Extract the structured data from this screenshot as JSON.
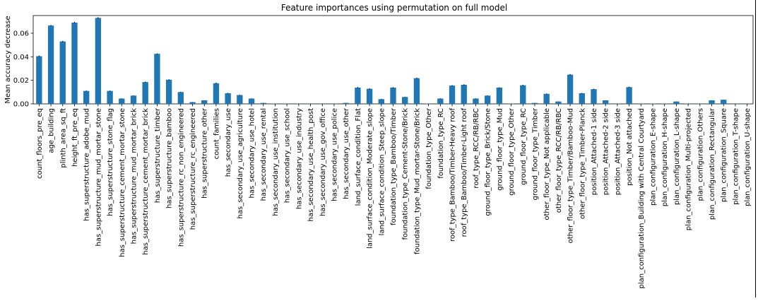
{
  "chart_data": {
    "type": "bar",
    "title": "Feature importances using permutation on full model",
    "xlabel": "",
    "ylabel": "Mean accuracy decrease",
    "ylim": [
      0,
      0.075
    ],
    "yticks": [
      0.0,
      0.02,
      0.04,
      0.06
    ],
    "ytick_labels": [
      "0.00",
      "0.02",
      "0.04",
      "0.06"
    ],
    "grid": false,
    "legend": "none",
    "bar_color": "#1f77b4",
    "categories": [
      "count_floors_pre_eq",
      "age_building",
      "plinth_area_sq_ft",
      "height_ft_pre_eq",
      "has_superstructure_adobe_mud",
      "has_superstructure_mud_mortar_stone",
      "has_superstructure_stone_flag",
      "has_superstructure_cement_mortar_stone",
      "has_superstructure_mud_mortar_brick",
      "has_superstructure_cement_mortar_brick",
      "has_superstructure_timber",
      "has_superstructure_bamboo",
      "has_superstructure_rc_non_engineered",
      "has_superstructure_rc_engineered",
      "has_superstructure_other",
      "count_families",
      "has_secondary_use",
      "has_secondary_use_agriculture",
      "has_secondary_use_hotel",
      "has_secondary_use_rental",
      "has_secondary_use_institution",
      "has_secondary_use_school",
      "has_secondary_use_industry",
      "has_secondary_use_health_post",
      "has_secondary_use_gov_office",
      "has_secondary_use_police",
      "has_secondary_use_other",
      "land_surface_condition_Flat",
      "land_surface_condition_Moderate_slope",
      "land_surface_condition_Steep_slope",
      "foundation_type_Bamboo/Timber",
      "foundation_type_Cement-Stone/Brick",
      "foundation_type_Mud_mortar-Stone/Brick",
      "foundation_type_Other",
      "foundation_type_RC",
      "roof_type_Bamboo/Timber-Heavy roof",
      "roof_type_Bamboo/Timber-Light roof",
      "roof_type_RCC/RB/RBC",
      "ground_floor_type_Brick/Stone",
      "ground_floor_type_Mud",
      "ground_floor_type_Other",
      "ground_floor_type_RC",
      "ground_floor_type_Timber",
      "other_floor_type_Not applicable",
      "other_floor_type_RCC/RB/RBC",
      "other_floor_type_Timber/Bamboo-Mud",
      "other_floor_type_Timber-Planck",
      "position_Attached-1 side",
      "position_Attached-2 side",
      "position_Attached-3 side",
      "position_Not attached",
      "plan_configuration_Building with Central Courtyard",
      "plan_configuration_E-shape",
      "plan_configuration_H-shape",
      "plan_configuration_L-shape",
      "plan_configuration_Multi-projected",
      "plan_configuration_Others",
      "plan_configuration_Rectangular",
      "plan_configuration_Square",
      "plan_configuration_T-shape",
      "plan_configuration_U-shape"
    ],
    "values": [
      0.0405,
      0.0665,
      0.053,
      0.069,
      0.011,
      0.073,
      0.011,
      0.0045,
      0.007,
      0.0185,
      0.0425,
      0.0205,
      0.01,
      0.0015,
      0.003,
      0.0175,
      0.009,
      0.0075,
      0.0045,
      0.0008,
      0.0002,
      0.0002,
      0.0002,
      0.0002,
      0.0002,
      0.0002,
      0.0008,
      0.0138,
      0.0128,
      0.004,
      0.0138,
      0.0058,
      0.0218,
      0.0002,
      0.0045,
      0.0155,
      0.0162,
      0.0045,
      0.007,
      0.0138,
      0.0002,
      0.0158,
      0.0008,
      0.0085,
      0.002,
      0.0248,
      0.009,
      0.0125,
      0.003,
      0.0002,
      0.0142,
      0.0002,
      0.0002,
      0.0002,
      0.002,
      0.0002,
      0.0002,
      0.003,
      0.0035,
      0.0002,
      0.0002
    ],
    "errors": [
      0.0005,
      0.0005,
      0.0005,
      0.0006,
      0.0003,
      0.0006,
      0.0003,
      0.0002,
      0.0002,
      0.0004,
      0.0004,
      0.0004,
      0.0003,
      0.0001,
      0.0001,
      0.0005,
      0.0003,
      0.0002,
      0.0002,
      0.0001,
      0.0001,
      0.0001,
      0.0001,
      0.0001,
      0.0001,
      0.0001,
      0.0001,
      0.0005,
      0.0004,
      0.0002,
      0.0004,
      0.0002,
      0.0005,
      0.0001,
      0.0002,
      0.0004,
      0.0004,
      0.0002,
      0.0002,
      0.0003,
      0.0001,
      0.0004,
      0.0001,
      0.0003,
      0.0001,
      0.0005,
      0.0003,
      0.0003,
      0.0001,
      0.0001,
      0.0004,
      0.0001,
      0.0001,
      0.0001,
      0.0001,
      0.0001,
      0.0001,
      0.0001,
      0.0001,
      0.0001,
      0.0001
    ]
  }
}
